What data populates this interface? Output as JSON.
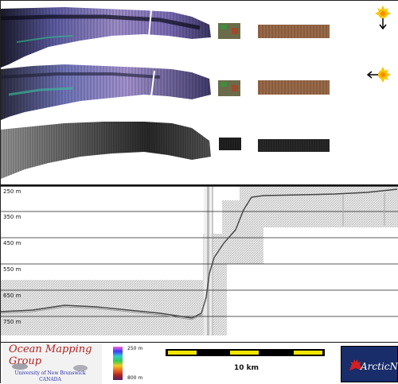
{
  "profile": {
    "depth_labels": [
      "250 m",
      "350 m",
      "450 m",
      "550 m",
      "650 m",
      "750 m"
    ]
  },
  "footer": {
    "org_title": "Ocean Mapping Group",
    "org_university": "University of New Brunswick",
    "org_country": "CANADA",
    "colorbar_top": "250 m",
    "colorbar_bottom": "800 m",
    "scale_label": "10 km",
    "arcticnet_label": "ArcticNet"
  },
  "colors": {
    "scale_yellow": "#f2e600",
    "scale_black": "#000000",
    "arcticnet_bg": "#1a2d6b",
    "logo_red": "#b22222"
  },
  "icons": [
    "sun-light-down-icon",
    "sun-light-left-icon",
    "maple-leaf-icon",
    "whale-icon"
  ]
}
